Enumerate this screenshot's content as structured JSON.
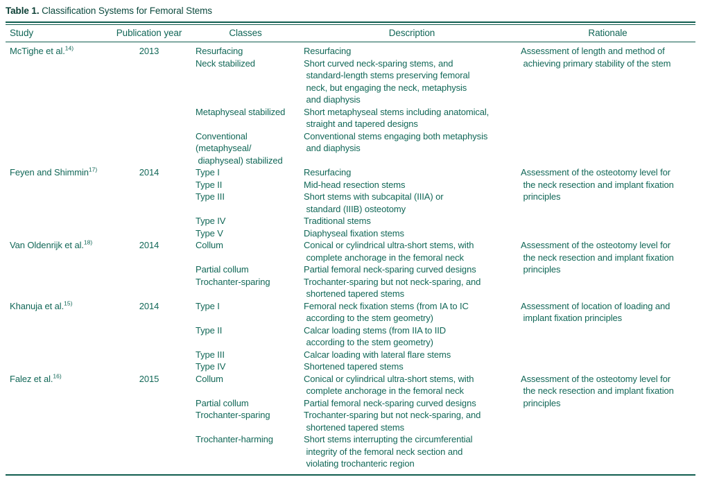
{
  "colors": {
    "body_text": "#116757",
    "title_text": "#0b3f35",
    "rule": "#0f5c4e",
    "background": "#ffffff"
  },
  "title": {
    "label": "Table 1.",
    "text": " Classification Systems for Femoral Stems"
  },
  "table": {
    "headers": [
      "Study",
      "Publication year",
      "Classes",
      "Description",
      "Rationale"
    ],
    "rows": [
      {
        "study": "McTighe et al.",
        "ref": "14)",
        "year": "2013",
        "rationale": "Assessment of length and method of\n achieving primary stability of the stem",
        "classes": [
          {
            "label": "Resurfacing",
            "desc": "Resurfacing"
          },
          {
            "label": "Neck stabilized",
            "desc": "Short curved neck-sparing stems, and\n standard-length stems preserving femoral\n neck, but engaging the neck, metaphysis\n and diaphysis"
          },
          {
            "label": "Metaphyseal stabilized",
            "desc": "Short metaphyseal stems including anatomical,\n straight and tapered designs"
          },
          {
            "label": "Conventional\n(metaphyseal/\n diaphyseal) stabilized",
            "desc": "Conventional stems engaging both metaphysis\n and diaphysis"
          }
        ]
      },
      {
        "study": "Feyen and Shimmin",
        "ref": "17)",
        "year": "2014",
        "rationale": "Assessment of the osteotomy level for\n the neck resection and implant fixation\n principles",
        "classes": [
          {
            "label": "Type I",
            "desc": "Resurfacing"
          },
          {
            "label": "Type II",
            "desc": "Mid-head resection stems"
          },
          {
            "label": "Type III",
            "desc": "Short stems with subcapital (IIIA) or\n standard (IIIB) osteotomy"
          },
          {
            "label": "Type IV",
            "desc": "Traditional stems"
          },
          {
            "label": "Type V",
            "desc": "Diaphyseal fixation stems"
          }
        ]
      },
      {
        "study": "Van Oldenrijk et al.",
        "ref": "18)",
        "year": "2014",
        "rationale": "Assessment of the osteotomy level for\n the neck resection and implant fixation\n principles",
        "classes": [
          {
            "label": "Collum",
            "desc": "Conical or cylindrical ultra-short stems, with\n complete anchorage in the femoral neck"
          },
          {
            "label": "Partial collum",
            "desc": "Partial femoral neck-sparing curved designs"
          },
          {
            "label": "Trochanter-sparing",
            "desc": "Trochanter-sparing but not neck-sparing, and\n shortened tapered stems"
          }
        ]
      },
      {
        "study": "Khanuja et al.",
        "ref": "15)",
        "year": "2014",
        "rationale": "Assessment of location of loading and\n implant fixation principles",
        "classes": [
          {
            "label": "Type I",
            "desc": "Femoral neck fixation stems (from IA to IC\n according to the stem geometry)"
          },
          {
            "label": "Type II",
            "desc": "Calcar loading stems (from IIA to IID\n according to the stem geometry)"
          },
          {
            "label": "Type III",
            "desc": "Calcar loading with lateral flare stems"
          },
          {
            "label": "Type IV",
            "desc": "Shortened tapered stems"
          }
        ]
      },
      {
        "study": "Falez et al.",
        "ref": "16)",
        "year": "2015",
        "rationale": "Assessment of the osteotomy level for\n the neck resection and implant fixation\n principles",
        "classes": [
          {
            "label": "Collum",
            "desc": "Conical or cylindrical ultra-short stems, with\n complete anchorage in the femoral neck"
          },
          {
            "label": "Partial collum",
            "desc": "Partial femoral neck-sparing curved designs"
          },
          {
            "label": "Trochanter-sparing",
            "desc": "Trochanter-sparing but not neck-sparing, and\n shortened tapered stems"
          },
          {
            "label": "Trochanter-harming",
            "desc": "Short stems interrupting the circumferential\n integrity of the femoral neck section and\n violating trochanteric region"
          }
        ]
      }
    ]
  }
}
